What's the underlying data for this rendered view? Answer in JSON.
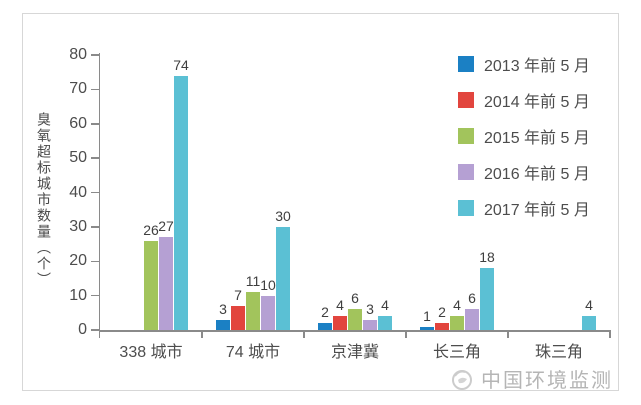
{
  "chart_data": {
    "type": "bar",
    "title": "",
    "ylabel": "臭氧超标城市数量（个）",
    "xlabel": "",
    "ylim": [
      0,
      80
    ],
    "ytick_step": 10,
    "grid": false,
    "legend_position": "top-right",
    "categories": [
      "338 城市",
      "74 城市",
      "京津冀",
      "长三角",
      "珠三角"
    ],
    "series": [
      {
        "name": "2013 年前 5 月",
        "color": "#1b80c4",
        "values": [
          null,
          3,
          2,
          1,
          null
        ]
      },
      {
        "name": "2014 年前 5 月",
        "color": "#e2453e",
        "values": [
          null,
          7,
          4,
          2,
          null
        ]
      },
      {
        "name": "2015 年前 5 月",
        "color": "#a2c45c",
        "values": [
          26,
          11,
          6,
          4,
          null
        ]
      },
      {
        "name": "2016 年前 5 月",
        "color": "#b5a0d3",
        "values": [
          27,
          10,
          3,
          6,
          null
        ]
      },
      {
        "name": "2017 年前 5 月",
        "color": "#5bc0d4",
        "values": [
          74,
          30,
          4,
          18,
          4
        ]
      }
    ]
  },
  "watermark": {
    "text": "中国环境监测"
  }
}
